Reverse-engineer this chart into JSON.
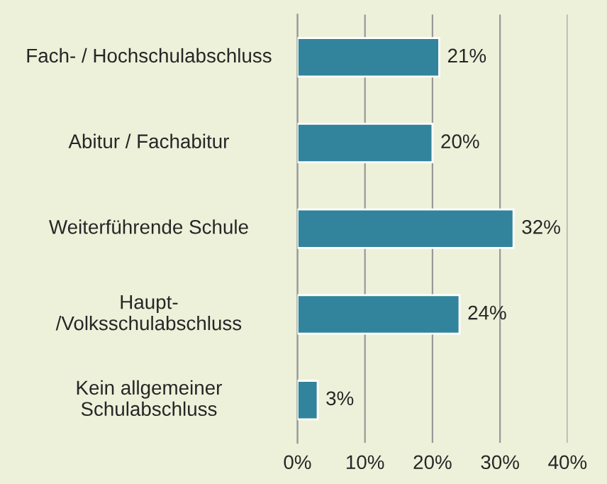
{
  "chart_data": {
    "type": "bar",
    "orientation": "horizontal",
    "categories": [
      "Fach- / Hochschulabschluss",
      "Abitur / Fachabitur",
      "Weiterführende Schule",
      "Haupt-\n/Volksschulabschluss",
      "Kein allgemeiner\nSchulabschluss"
    ],
    "values": [
      21,
      20,
      32,
      24,
      3
    ],
    "value_labels": [
      "21%",
      "20%",
      "32%",
      "24%",
      "3%"
    ],
    "color": "#31849b",
    "xlim": [
      0,
      40
    ],
    "xticks": [
      {
        "value": 0,
        "label": "0%"
      },
      {
        "value": 10,
        "label": "10%"
      },
      {
        "value": 20,
        "label": "20%"
      },
      {
        "value": 30,
        "label": "30%"
      },
      {
        "value": 40,
        "label": "40%"
      }
    ],
    "grid": "x"
  }
}
